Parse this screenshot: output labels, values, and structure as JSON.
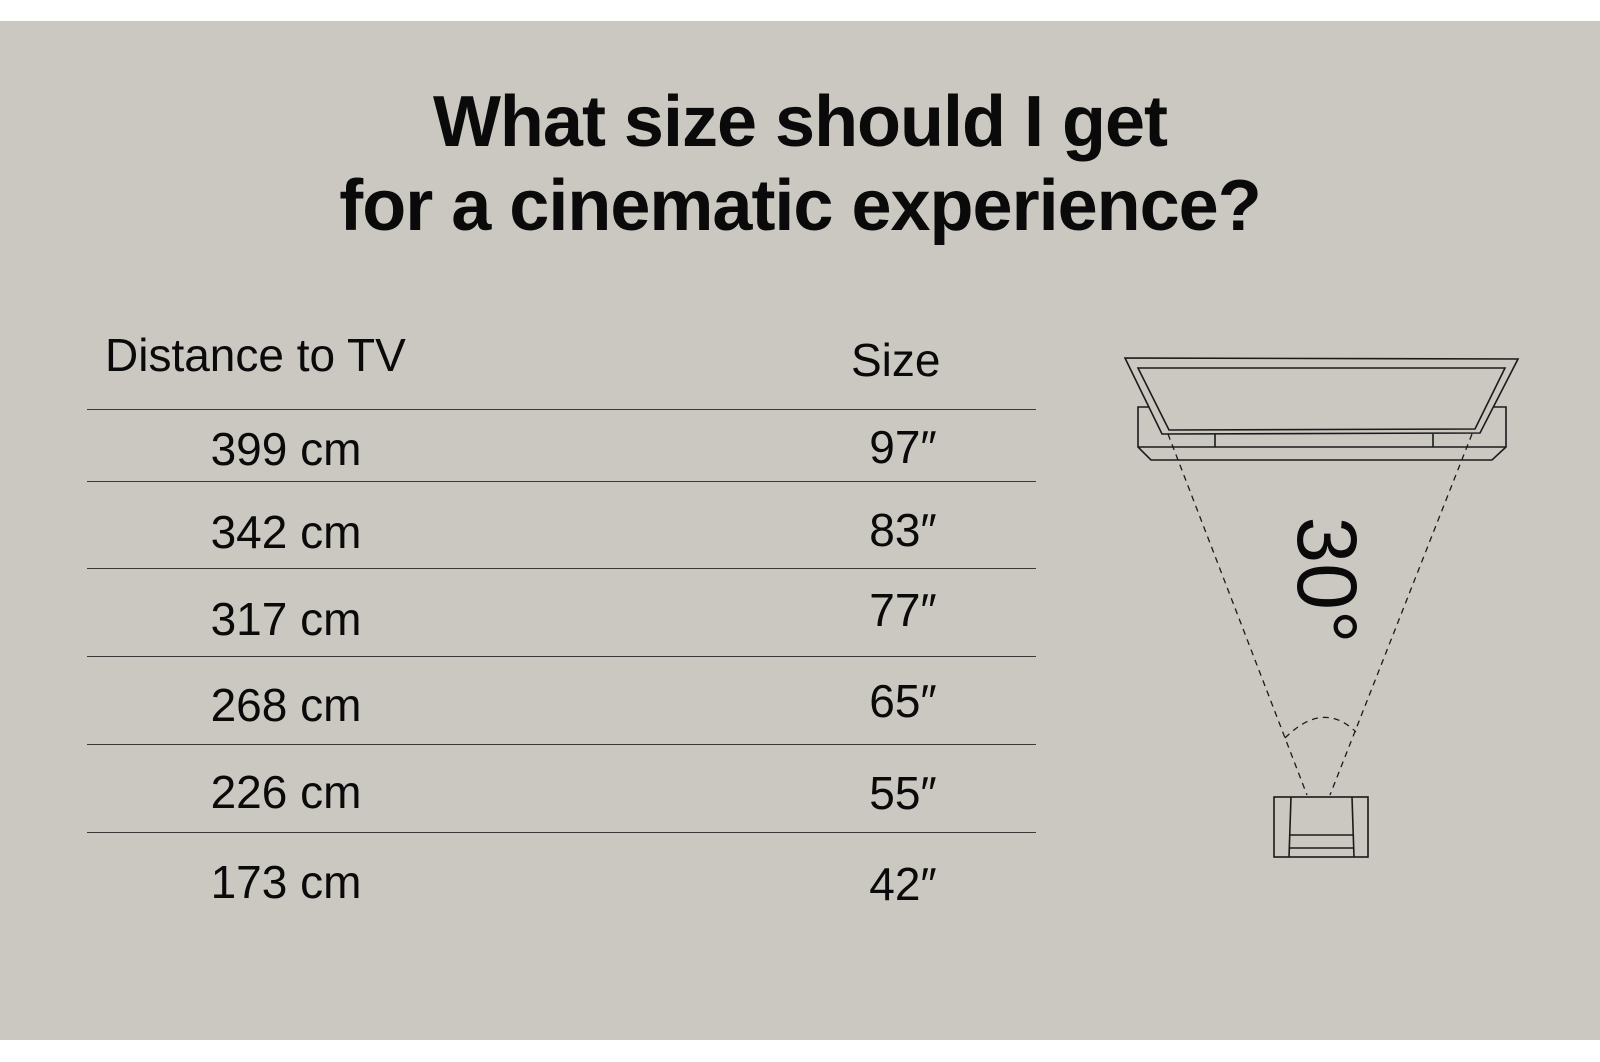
{
  "title": {
    "line1": "What size should I get",
    "line2": "for a cinematic experience?"
  },
  "table": {
    "headers": {
      "distance": "Distance to TV",
      "size": "Size"
    },
    "rows": [
      {
        "distance": "399 cm",
        "size": "97″"
      },
      {
        "distance": "342 cm",
        "size": "83″"
      },
      {
        "distance": "317 cm",
        "size": "77″"
      },
      {
        "distance": "268 cm",
        "size": "65″"
      },
      {
        "distance": "226 cm",
        "size": "55″"
      },
      {
        "distance": "173 cm",
        "size": "42″"
      }
    ]
  },
  "diagram": {
    "angle_label": "30°"
  },
  "colors": {
    "background": "#cbc8c2",
    "ink": "#0a0a0a"
  }
}
